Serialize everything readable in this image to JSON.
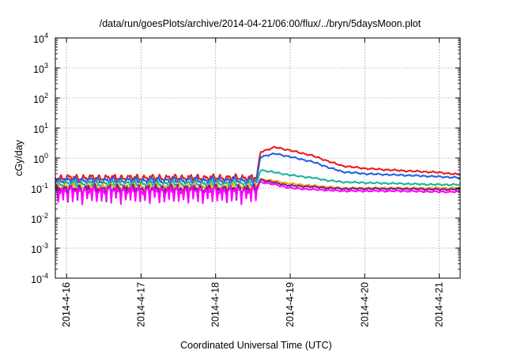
{
  "chart_data": {
    "type": "line",
    "title": "/data/run/goesPlots/archive/2014-04-21/06:00/flux/../bryn/5daysMoon.plot",
    "xlabel": "Coordinated Universal Time (UTC)",
    "ylabel": "cGy/day",
    "yscale": "log",
    "ylim": [
      0.0001,
      10000
    ],
    "xlim": [
      -0.15,
      5.28
    ],
    "grid": true,
    "yticks": [
      {
        "base": "10",
        "exp": "-4",
        "value": 0.0001
      },
      {
        "base": "10",
        "exp": "-3",
        "value": 0.001
      },
      {
        "base": "10",
        "exp": "-2",
        "value": 0.01
      },
      {
        "base": "10",
        "exp": "-1",
        "value": 0.1
      },
      {
        "base": "10",
        "exp": "0",
        "value": 1
      },
      {
        "base": "10",
        "exp": "1",
        "value": 10
      },
      {
        "base": "10",
        "exp": "2",
        "value": 100
      },
      {
        "base": "10",
        "exp": "3",
        "value": 1000
      },
      {
        "base": "10",
        "exp": "4",
        "value": 10000
      }
    ],
    "xticks": [
      {
        "label": "2014-4-16",
        "value": 0
      },
      {
        "label": "2014-4-17",
        "value": 1
      },
      {
        "label": "2014-4-18",
        "value": 2
      },
      {
        "label": "2014-4-19",
        "value": 3
      },
      {
        "label": "2014-4-20",
        "value": 4
      },
      {
        "label": "2014-4-21",
        "value": 5
      }
    ],
    "series": [
      {
        "color": "#e41a1c",
        "x": [
          -0.15,
          0.5,
          1.0,
          1.5,
          2.0,
          2.3,
          2.55,
          2.6,
          2.8,
          3.0,
          3.3,
          3.5,
          3.7,
          4.0,
          4.5,
          5.0,
          5.28
        ],
        "values": [
          0.22,
          0.22,
          0.22,
          0.22,
          0.22,
          0.22,
          0.22,
          1.6,
          2.3,
          1.8,
          1.2,
          0.8,
          0.55,
          0.45,
          0.38,
          0.33,
          0.28
        ]
      },
      {
        "color": "#1f5fe0",
        "x": [
          -0.15,
          0.5,
          1.0,
          1.5,
          2.0,
          2.3,
          2.55,
          2.6,
          2.8,
          3.0,
          3.3,
          3.5,
          3.7,
          4.0,
          4.5,
          5.0,
          5.28
        ],
        "values": [
          0.18,
          0.18,
          0.18,
          0.18,
          0.18,
          0.18,
          0.18,
          1.1,
          1.4,
          1.1,
          0.75,
          0.5,
          0.35,
          0.3,
          0.27,
          0.24,
          0.22
        ]
      },
      {
        "color": "#17b39a",
        "x": [
          -0.15,
          0.5,
          1.0,
          1.5,
          2.0,
          2.3,
          2.55,
          2.6,
          2.8,
          3.0,
          3.3,
          3.5,
          3.7,
          4.0,
          4.5,
          5.0,
          5.28
        ],
        "values": [
          0.14,
          0.14,
          0.14,
          0.14,
          0.14,
          0.14,
          0.14,
          0.4,
          0.33,
          0.27,
          0.22,
          0.18,
          0.16,
          0.15,
          0.14,
          0.13,
          0.13
        ]
      },
      {
        "color": "#f0a000",
        "x": [
          -0.15,
          0.5,
          1.0,
          1.5,
          2.0,
          2.3,
          2.55,
          2.6,
          2.8,
          3.0,
          3.3,
          3.5,
          3.7,
          4.0,
          4.5,
          5.0,
          5.28
        ],
        "values": [
          0.11,
          0.11,
          0.11,
          0.11,
          0.11,
          0.11,
          0.11,
          0.2,
          0.17,
          0.14,
          0.12,
          0.11,
          0.1,
          0.1,
          0.1,
          0.1,
          0.1
        ]
      },
      {
        "color": "#7a1a8f",
        "x": [
          -0.15,
          0.5,
          1.0,
          1.5,
          2.0,
          2.3,
          2.55,
          2.6,
          2.8,
          3.0,
          3.3,
          3.5,
          3.7,
          4.0,
          4.5,
          5.0,
          5.28
        ],
        "values": [
          0.1,
          0.1,
          0.1,
          0.1,
          0.1,
          0.1,
          0.1,
          0.19,
          0.15,
          0.12,
          0.11,
          0.1,
          0.095,
          0.095,
          0.095,
          0.09,
          0.09
        ]
      },
      {
        "color": "#ff00ff",
        "x": [
          -0.15,
          0.5,
          1.0,
          1.5,
          2.0,
          2.3,
          2.55,
          2.6,
          2.8,
          3.0,
          3.3,
          3.5,
          3.7,
          4.0,
          4.5,
          5.0,
          5.28
        ],
        "values": [
          0.085,
          0.085,
          0.085,
          0.085,
          0.085,
          0.085,
          0.085,
          0.16,
          0.13,
          0.1,
          0.09,
          0.085,
          0.08,
          0.08,
          0.08,
          0.075,
          0.075
        ]
      }
    ]
  }
}
